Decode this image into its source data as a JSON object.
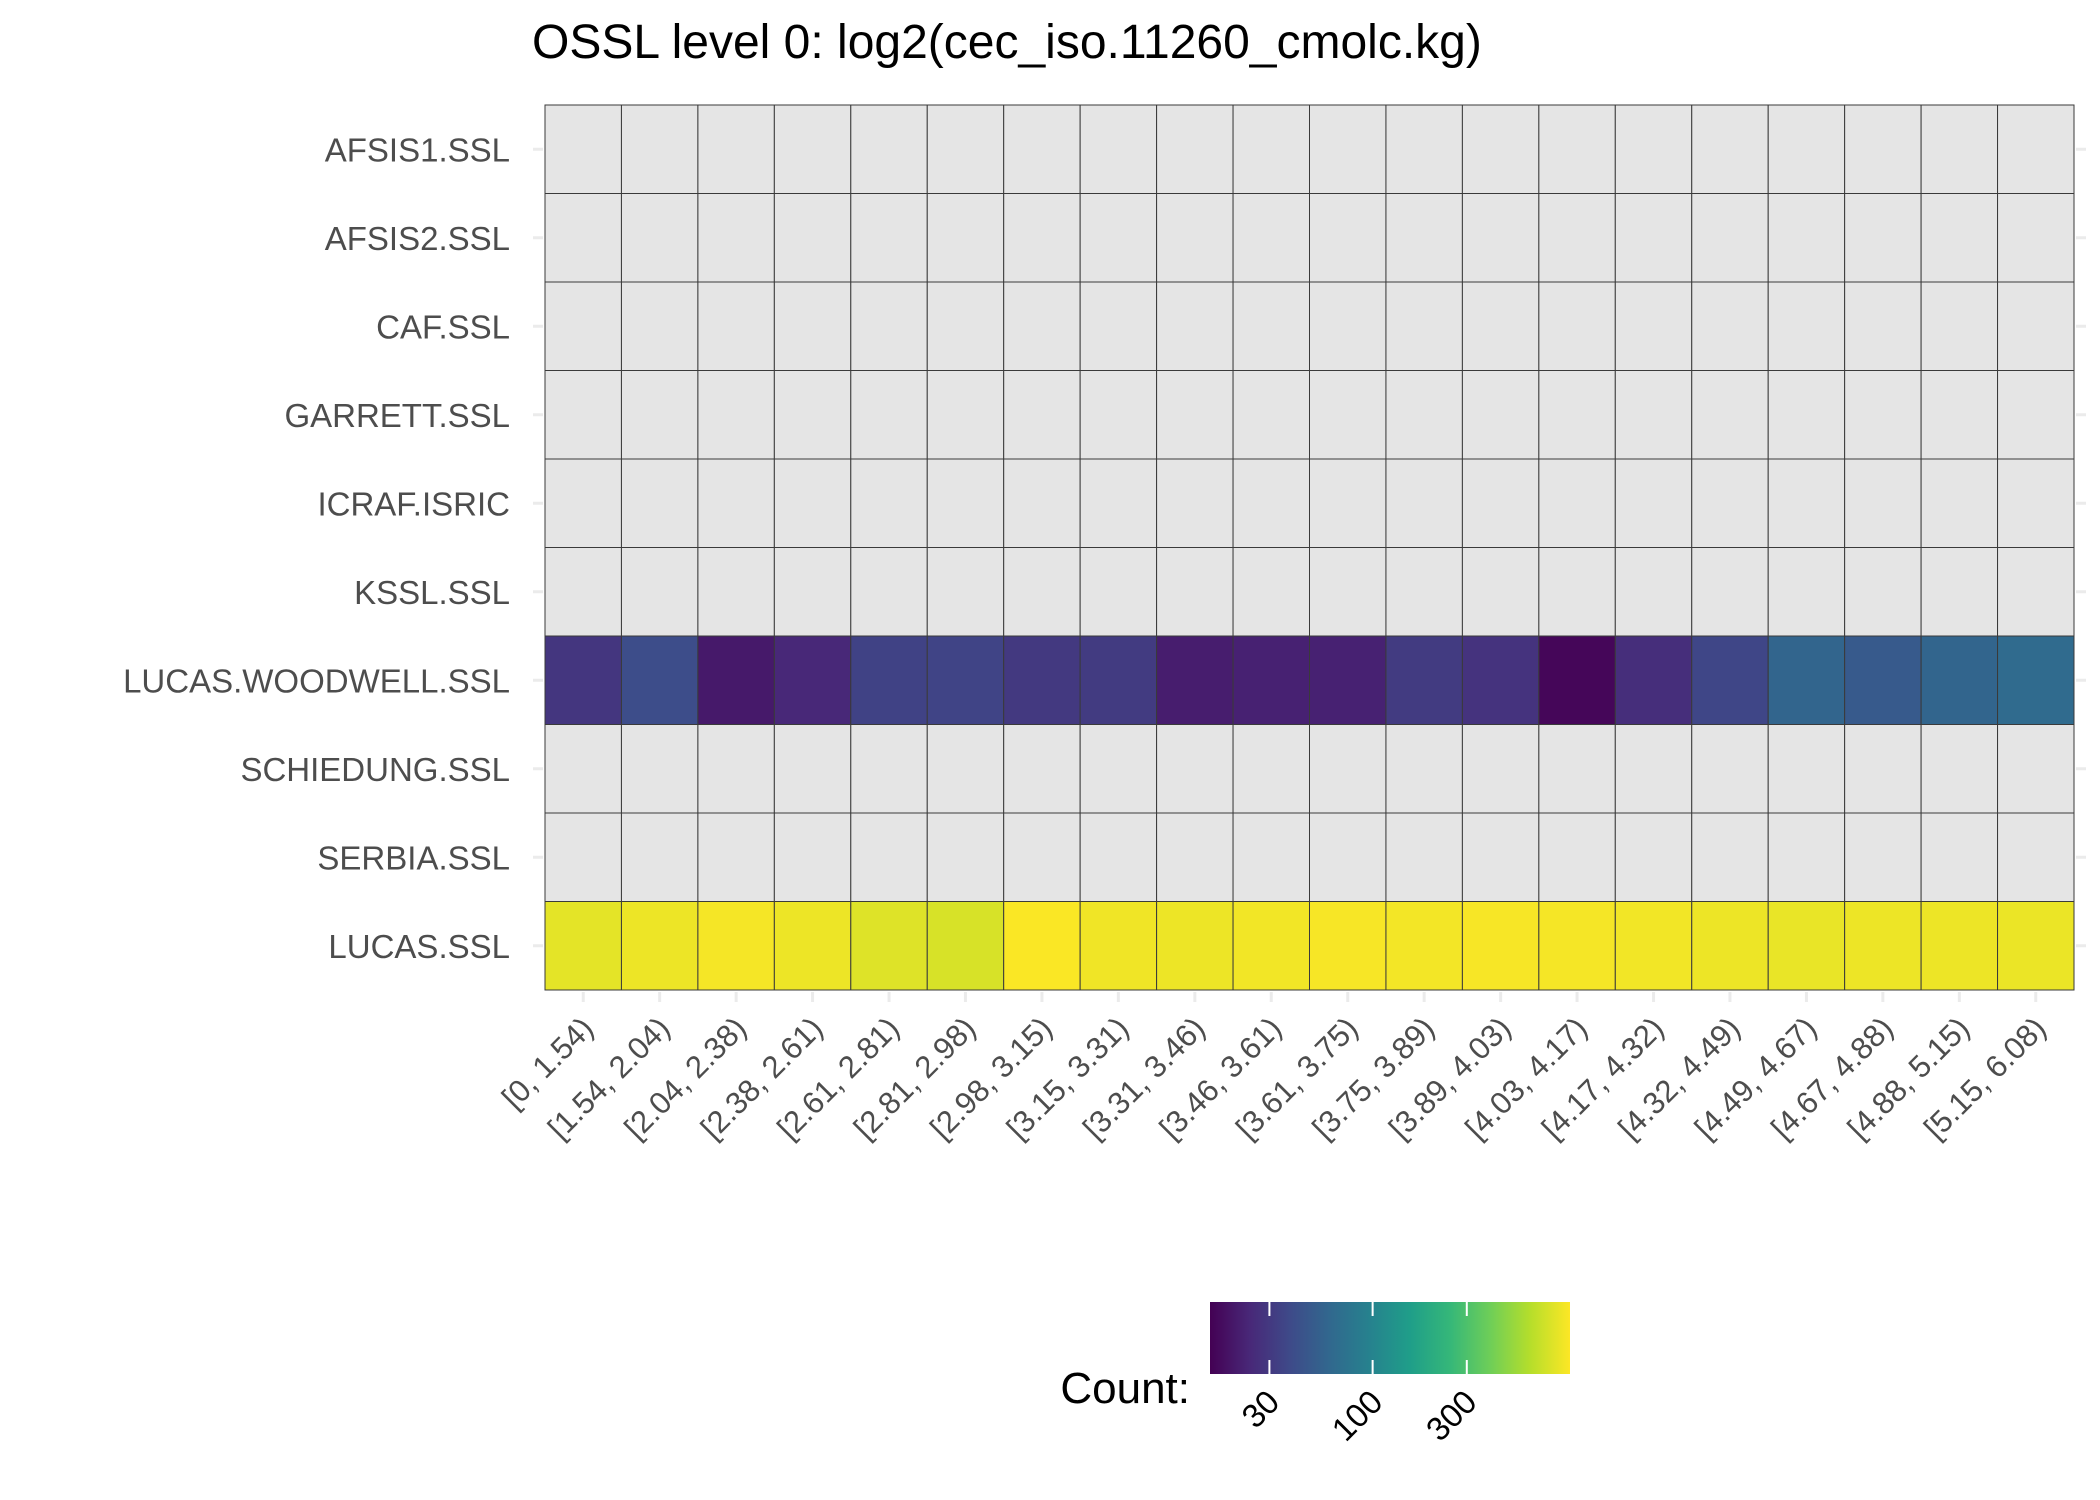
{
  "chart_data": {
    "type": "heatmap",
    "title": "OSSL level 0: log2(cec_iso.11260_cmolc.kg)",
    "xlabel": "",
    "ylabel": "",
    "x_categories": [
      "[0, 1.54)",
      "[1.54, 2.04)",
      "[2.04, 2.38)",
      "[2.38, 2.61)",
      "[2.61, 2.81)",
      "[2.81, 2.98)",
      "[2.98, 3.15)",
      "[3.15, 3.31)",
      "[3.31, 3.46)",
      "[3.46, 3.61)",
      "[3.61, 3.75)",
      "[3.75, 3.89)",
      "[3.89, 4.03)",
      "[4.03, 4.17)",
      "[4.17, 4.32)",
      "[4.32, 4.49)",
      "[4.49, 4.67)",
      "[4.67, 4.88)",
      "[4.88, 5.15)",
      "[5.15, 6.08)"
    ],
    "y_categories": [
      "AFSIS1.SSL",
      "AFSIS2.SSL",
      "CAF.SSL",
      "GARRETT.SSL",
      "ICRAF.ISRIC",
      "KSSL.SSL",
      "LUCAS.WOODWELL.SSL",
      "SCHIEDUNG.SSL",
      "SERBIA.SSL",
      "LUCAS.SSL"
    ],
    "rows": [
      {
        "name": "AFSIS1.SSL",
        "values": [
          null,
          null,
          null,
          null,
          null,
          null,
          null,
          null,
          null,
          null,
          null,
          null,
          null,
          null,
          null,
          null,
          null,
          null,
          null,
          null
        ]
      },
      {
        "name": "AFSIS2.SSL",
        "values": [
          null,
          null,
          null,
          null,
          null,
          null,
          null,
          null,
          null,
          null,
          null,
          null,
          null,
          null,
          null,
          null,
          null,
          null,
          null,
          null
        ]
      },
      {
        "name": "CAF.SSL",
        "values": [
          null,
          null,
          null,
          null,
          null,
          null,
          null,
          null,
          null,
          null,
          null,
          null,
          null,
          null,
          null,
          null,
          null,
          null,
          null,
          null
        ]
      },
      {
        "name": "GARRETT.SSL",
        "values": [
          null,
          null,
          null,
          null,
          null,
          null,
          null,
          null,
          null,
          null,
          null,
          null,
          null,
          null,
          null,
          null,
          null,
          null,
          null,
          null
        ]
      },
      {
        "name": "ICRAF.ISRIC",
        "values": [
          null,
          null,
          null,
          null,
          null,
          null,
          null,
          null,
          null,
          null,
          null,
          null,
          null,
          null,
          null,
          null,
          null,
          null,
          null,
          null
        ]
      },
      {
        "name": "KSSL.SSL",
        "values": [
          null,
          null,
          null,
          null,
          null,
          null,
          null,
          null,
          null,
          null,
          null,
          null,
          null,
          null,
          null,
          null,
          null,
          null,
          null,
          null
        ]
      },
      {
        "name": "LUCAS.WOODWELL.SSL",
        "values": [
          29,
          40,
          20,
          24,
          34,
          35,
          30,
          31,
          21,
          22,
          22,
          31,
          28,
          16,
          26,
          36,
          58,
          49,
          58,
          64
        ]
      },
      {
        "name": "SCHIEDUNG.SSL",
        "values": [
          null,
          null,
          null,
          null,
          null,
          null,
          null,
          null,
          null,
          null,
          null,
          null,
          null,
          null,
          null,
          null,
          null,
          null,
          null,
          null
        ]
      },
      {
        "name": "SERBIA.SSL",
        "values": [
          null,
          null,
          null,
          null,
          null,
          null,
          null,
          null,
          null,
          null,
          null,
          null,
          null,
          null,
          null,
          null,
          null,
          null,
          null,
          null
        ]
      },
      {
        "name": "LUCAS.SSL",
        "values": [
          850,
          900,
          950,
          900,
          820,
          780,
          980,
          920,
          900,
          930,
          960,
          940,
          960,
          950,
          930,
          900,
          880,
          900,
          900,
          890
        ]
      }
    ],
    "na_color": "#e5e5e5",
    "colorscale": "viridis",
    "color_scale_type": "log",
    "color_range": [
      15,
      1000
    ],
    "legend": {
      "title": "Count:",
      "ticks": [
        30,
        100,
        300
      ],
      "tick_labels": [
        "30",
        "100",
        "300"
      ],
      "position": "bottom"
    },
    "grid": false
  }
}
